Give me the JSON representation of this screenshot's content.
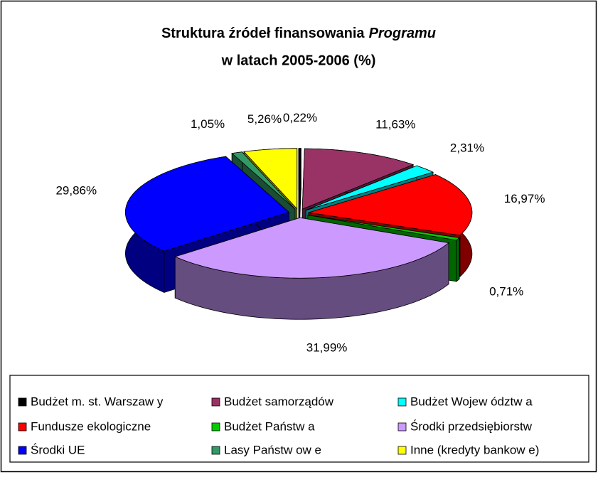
{
  "chart_data": {
    "type": "pie3d",
    "title": {
      "line1": "Struktura źródeł finansowania",
      "line1_italic": "Programu",
      "line2": "w latach 2005-2006 (%)"
    },
    "categories": [
      "Budżet m. st. Warszaw y",
      "Budżet samorządów",
      "Budżet Wojew ództw a",
      "Fundusze ekologiczne",
      "Budżet Państw a",
      "Środki przedsiębiorstw",
      "Środki UE",
      "Lasy Państw ow e",
      "Inne (kredyty bankow e)"
    ],
    "values": [
      0.22,
      11.63,
      2.31,
      16.97,
      0.71,
      31.99,
      29.86,
      1.05,
      5.26
    ],
    "value_labels": [
      "0,22%",
      "11,63%",
      "2,31%",
      "16,97%",
      "0,71%",
      "31,99%",
      "29,86%",
      "1,05%",
      "5,26%"
    ],
    "colors": [
      "#000000",
      "#993366",
      "#00ffff",
      "#ff0000",
      "#00cc00",
      "#cc99ff",
      "#0000ff",
      "#339966",
      "#ffff00"
    ],
    "legend": "bottom"
  }
}
